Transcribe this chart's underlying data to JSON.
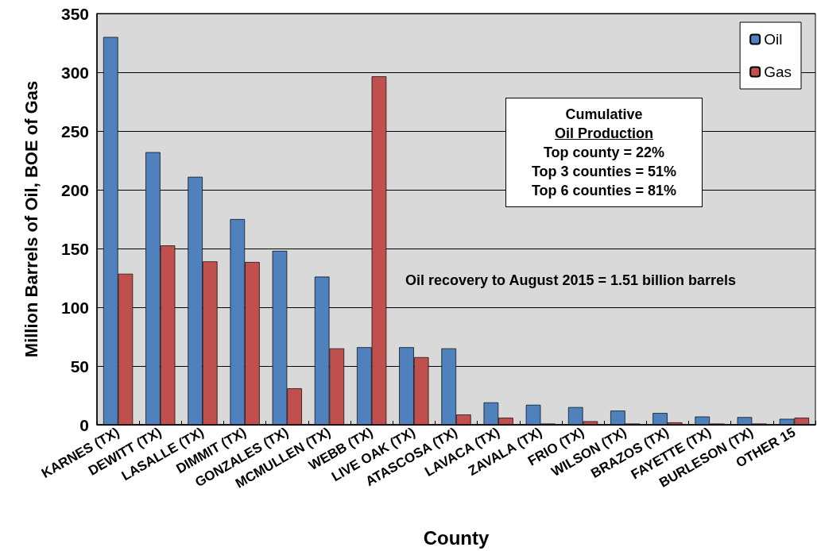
{
  "chart_data": {
    "type": "bar",
    "xlabel": "County",
    "ylabel": "Million Barrels of Oil, BOE of Gas",
    "categories": [
      "KARNES (TX)",
      "DEWITT (TX)",
      "LASALLE (TX)",
      "DIMMIT (TX)",
      "GONZALES (TX)",
      "MCMULLEN (TX)",
      "WEBB (TX)",
      "LIVE OAK (TX)",
      "ATASCOSA (TX)",
      "LAVACA (TX)",
      "ZAVALA (TX)",
      "FRIO (TX)",
      "WILSON (TX)",
      "BRAZOS (TX)",
      "FAYETTE (TX)",
      "BURLESON (TX)",
      "OTHER 15"
    ],
    "series": [
      {
        "name": "Oil",
        "color": "#4f81bd",
        "values": [
          330,
          232,
          211,
          175,
          148,
          126,
          66,
          66,
          65,
          19,
          17,
          15,
          12,
          10,
          7,
          6.5,
          5
        ]
      },
      {
        "name": "Gas",
        "color": "#c0504d",
        "values": [
          128.5,
          152.6,
          139,
          138.5,
          31,
          65,
          296.5,
          57.5,
          8.7,
          6,
          1,
          3,
          1,
          2,
          1,
          1,
          6
        ]
      }
    ],
    "ylim": [
      0,
      350
    ],
    "yticks": [
      0,
      50,
      100,
      150,
      200,
      250,
      300,
      350
    ],
    "grid": "y",
    "legend": "top right",
    "annotations": [
      "Cumulative",
      "Oil Production",
      "Top county = 22%",
      "Top 3 counties = 51%",
      "Top 6 counties = 81%",
      "Oil recovery to August 2015 = 1.51 billion barrels"
    ]
  }
}
